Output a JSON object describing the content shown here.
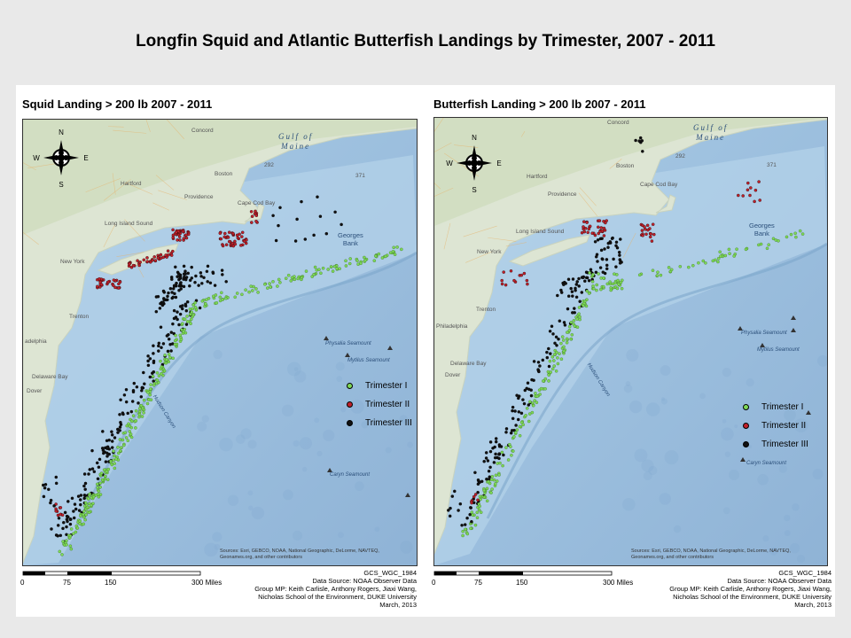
{
  "slide_title": "Longfin Squid and Atlantic Butterfish Landings by Trimester, 2007 - 2011",
  "colors": {
    "trimester_1": "#7ed957",
    "trimester_2": "#c0202a",
    "trimester_3": "#111111",
    "ocean": "#9ec0dd",
    "land": "#dde5d3"
  },
  "maps": [
    {
      "title": "Squid Landing > 200 lb 2007 - 2011",
      "legend": [
        "Trimester I",
        "Trimester II",
        "Trimester III"
      ],
      "compass": {
        "n": "N",
        "s": "S",
        "e": "E",
        "w": "W"
      },
      "labels": {
        "gulf_line1": "Gulf of",
        "gulf_line2": "Maine",
        "bank_line1": "Georges",
        "bank_line2": "Bank",
        "concord": "Concord",
        "boston": "Boston",
        "providence": "Providence",
        "hartford": "Hartford",
        "long_island_sound": "Long Island Sound",
        "new_york": "New York",
        "trenton": "Trenton",
        "philadelphia": "adelphia",
        "dover": "Dover",
        "delaware_bay": "Delaware Bay",
        "physalia": "Physalia Seamount",
        "mytilus": "Mytilus Seamount",
        "hudson_canyon": "Hudson Canyon",
        "caryn": "Caryn Seamount",
        "depth_292": "292",
        "depth_371": "371",
        "cape_cod": "Cape Cod Bay",
        "sources_line1": "Sources: Esri, GEBCO, NOAA, National Geographic, DeLorme, NAVTEQ,",
        "sources_line2": "Geonames.org, and other contributors"
      },
      "scale": {
        "ticks": [
          "0",
          "75",
          "150",
          "300 Miles"
        ]
      },
      "credits": [
        "GCS_WGC_1984",
        "Data Source: NOAA Observer Data",
        "Group MP: Keith Carlisle, Anthony Rogers, Jiaxi Wang,",
        "Nicholas School of the Environment, DUKE University",
        "March, 2013"
      ]
    },
    {
      "title": "Butterfish Landing > 200 lb 2007 - 2011",
      "legend": [
        "Trimester I",
        "Trimester II",
        "Trimester III"
      ],
      "compass": {
        "n": "N",
        "s": "S",
        "e": "E",
        "w": "W"
      },
      "labels": {
        "gulf_line1": "Gulf of",
        "gulf_line2": "Maine",
        "bank_line1": "Georges",
        "bank_line2": "Bank",
        "concord": "Concord",
        "boston": "Boston",
        "providence": "Providence",
        "hartford": "Hartford",
        "long_island_sound": "Long Island Sound",
        "new_york": "New York",
        "trenton": "Trenton",
        "philadelphia": "Philadelphia",
        "dover": "Dover",
        "delaware_bay": "Delaware Bay",
        "physalia": "Physalia Seamount",
        "mytilus": "Mytilus Seamount",
        "hudson_canyon": "Hudson Canyon",
        "caryn": "Caryn Seamount",
        "depth_292": "292",
        "depth_371": "371",
        "cape_cod": "Cape Cod Bay",
        "sources_line1": "Sources: Esri, GEBCO, NOAA, National Geographic, DeLorme, NAVTEQ,",
        "sources_line2": "Geonames.org, and other contributors"
      },
      "scale": {
        "ticks": [
          "0",
          "75",
          "150",
          "300 Miles"
        ]
      },
      "credits": [
        "GCS_WGC_1984",
        "Data Source: NOAA Observer Data",
        "Group MP: Keith Carlisle, Anthony Rogers, Jiaxi Wang,",
        "Nicholas School of the Environment, DUKE University",
        "March, 2013"
      ]
    }
  ]
}
